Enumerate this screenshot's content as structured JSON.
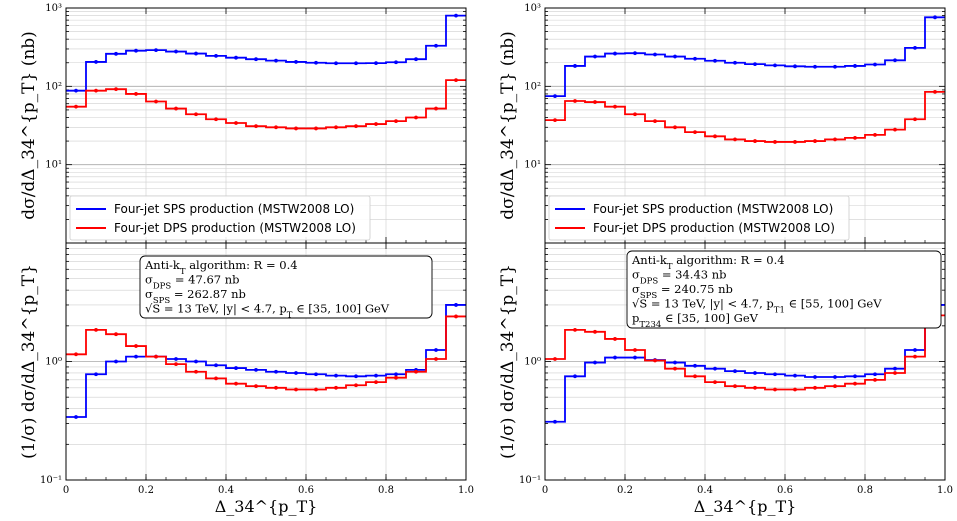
{
  "chart_data": [
    {
      "type": "line",
      "title": "",
      "xlabel": "Δ_34^{p_T}",
      "ylabel_top": "dσ/dΔ_34^{p_T} (nb)",
      "ylabel_bottom": "(1/σ) dσ/dΔ_34^{p_T}",
      "x_edges": [
        0,
        0.05,
        0.1,
        0.15,
        0.2,
        0.25,
        0.3,
        0.35,
        0.4,
        0.45,
        0.5,
        0.55,
        0.6,
        0.65,
        0.7,
        0.75,
        0.8,
        0.85,
        0.9,
        0.95,
        1.0
      ],
      "xlim": [
        0,
        1.0
      ],
      "xticks": [
        0,
        0.2,
        0.4,
        0.6,
        0.8,
        1.0
      ],
      "xtick_labels": [
        "0",
        "0.2",
        "0.4",
        "0.6",
        "0.8",
        "1.0"
      ],
      "top": {
        "ylim": [
          1,
          1000
        ],
        "yscale": "log",
        "yticks": [
          {
            "v": 1000,
            "label": "10³"
          },
          {
            "v": 100,
            "label": "10²"
          },
          {
            "v": 10,
            "label": "10¹"
          }
        ],
        "legend": "lower-left",
        "series": [
          {
            "name": "Four-jet SPS production (MSTW2008 LO)",
            "color": "#0000ff",
            "values": [
              88,
              205,
              260,
              285,
              290,
              278,
              262,
              245,
              232,
              222,
              213,
              205,
              200,
              197,
              197,
              198,
              203,
              222,
              330,
              800
            ]
          },
          {
            "name": "Four-jet DPS production (MSTW2008 LO)",
            "color": "#ff0000",
            "values": [
              55,
              88,
              92,
              80,
              64,
              52,
              44,
              38,
              34,
              31,
              30,
              29,
              29,
              30,
              31,
              33,
              36,
              40,
              52,
              120
            ]
          }
        ]
      },
      "bottom": {
        "ylim": [
          0.1,
          10
        ],
        "yscale": "log",
        "yticks": [
          {
            "v": 1,
            "label": "10⁰"
          },
          {
            "v": 0.1,
            "label": "10⁻¹"
          }
        ],
        "annotation": [
          "Anti-k_T algorithm: R = 0.4",
          "σ_DPS = 47.67 nb",
          "σ_SPS = 262.87 nb",
          "√S = 13 TeV, |y| < 4.7, p_T ∈ [35, 100] GeV"
        ],
        "series": [
          {
            "name": "Four-jet SPS production (MSTW2008 LO)",
            "color": "#0000ff",
            "values": [
              0.34,
              0.78,
              1.0,
              1.1,
              1.1,
              1.05,
              1.0,
              0.93,
              0.88,
              0.85,
              0.82,
              0.8,
              0.78,
              0.76,
              0.75,
              0.76,
              0.78,
              0.85,
              1.25,
              3.0
            ]
          },
          {
            "name": "Four-jet DPS production (MSTW2008 LO)",
            "color": "#ff0000",
            "values": [
              1.15,
              1.85,
              1.7,
              1.35,
              1.1,
              0.95,
              0.82,
              0.72,
              0.65,
              0.62,
              0.6,
              0.58,
              0.58,
              0.6,
              0.63,
              0.67,
              0.73,
              0.82,
              1.05,
              2.4
            ]
          }
        ]
      }
    },
    {
      "type": "line",
      "title": "",
      "xlabel": "Δ_34^{p_T}",
      "ylabel_top": "dσ/dΔ_34^{p_T} (nb)",
      "ylabel_bottom": "(1/σ) dσ/dΔ_34^{p_T}",
      "x_edges": [
        0,
        0.05,
        0.1,
        0.15,
        0.2,
        0.25,
        0.3,
        0.35,
        0.4,
        0.45,
        0.5,
        0.55,
        0.6,
        0.65,
        0.7,
        0.75,
        0.8,
        0.85,
        0.9,
        0.95,
        1.0
      ],
      "xlim": [
        0,
        1.0
      ],
      "xticks": [
        0,
        0.2,
        0.4,
        0.6,
        0.8,
        1.0
      ],
      "xtick_labels": [
        "0",
        "0.2",
        "0.4",
        "0.6",
        "0.8",
        "1.0"
      ],
      "top": {
        "ylim": [
          1,
          1000
        ],
        "yscale": "log",
        "yticks": [
          {
            "v": 1000,
            "label": "10³"
          },
          {
            "v": 100,
            "label": "10²"
          },
          {
            "v": 10,
            "label": "10¹"
          }
        ],
        "legend": "lower-left",
        "series": [
          {
            "name": "Four-jet SPS production (MSTW2008 LO)",
            "color": "#0000ff",
            "values": [
              75,
              182,
              240,
              262,
              265,
              255,
              240,
              225,
              212,
              200,
              192,
              185,
              180,
              178,
              178,
              182,
              190,
              215,
              310,
              760
            ]
          },
          {
            "name": "Four-jet DPS production (MSTW2008 LO)",
            "color": "#ff0000",
            "values": [
              37,
              65,
              63,
              55,
              44,
              36,
              30,
              26,
              23,
              21,
              20,
              19.5,
              19.5,
              20,
              21,
              22,
              24,
              28,
              38,
              85
            ]
          }
        ]
      },
      "bottom": {
        "ylim": [
          0.1,
          10
        ],
        "yscale": "log",
        "yticks": [
          {
            "v": 1,
            "label": "10⁰"
          },
          {
            "v": 0.1,
            "label": "10⁻¹"
          }
        ],
        "annotation": [
          "Anti-k_T algorithm: R = 0.4",
          "σ_DPS = 34.43 nb",
          "σ_SPS = 240.75 nb",
          "√S = 13 TeV, |y| < 4.7, p_T1 ∈ [55, 100] GeV",
          "p_T234 ∈ [35, 100] GeV"
        ],
        "series": [
          {
            "name": "Four-jet SPS production (MSTW2008 LO)",
            "color": "#0000ff",
            "values": [
              0.31,
              0.75,
              0.98,
              1.08,
              1.08,
              1.03,
              0.98,
              0.92,
              0.87,
              0.83,
              0.8,
              0.78,
              0.76,
              0.74,
              0.74,
              0.75,
              0.78,
              0.87,
              1.25,
              3.0
            ]
          },
          {
            "name": "Four-jet DPS production (MSTW2008 LO)",
            "color": "#ff0000",
            "values": [
              1.05,
              1.85,
              1.78,
              1.55,
              1.25,
              1.02,
              0.87,
              0.75,
              0.67,
              0.62,
              0.6,
              0.58,
              0.58,
              0.6,
              0.62,
              0.65,
              0.7,
              0.8,
              1.1,
              2.45
            ]
          }
        ]
      }
    }
  ]
}
